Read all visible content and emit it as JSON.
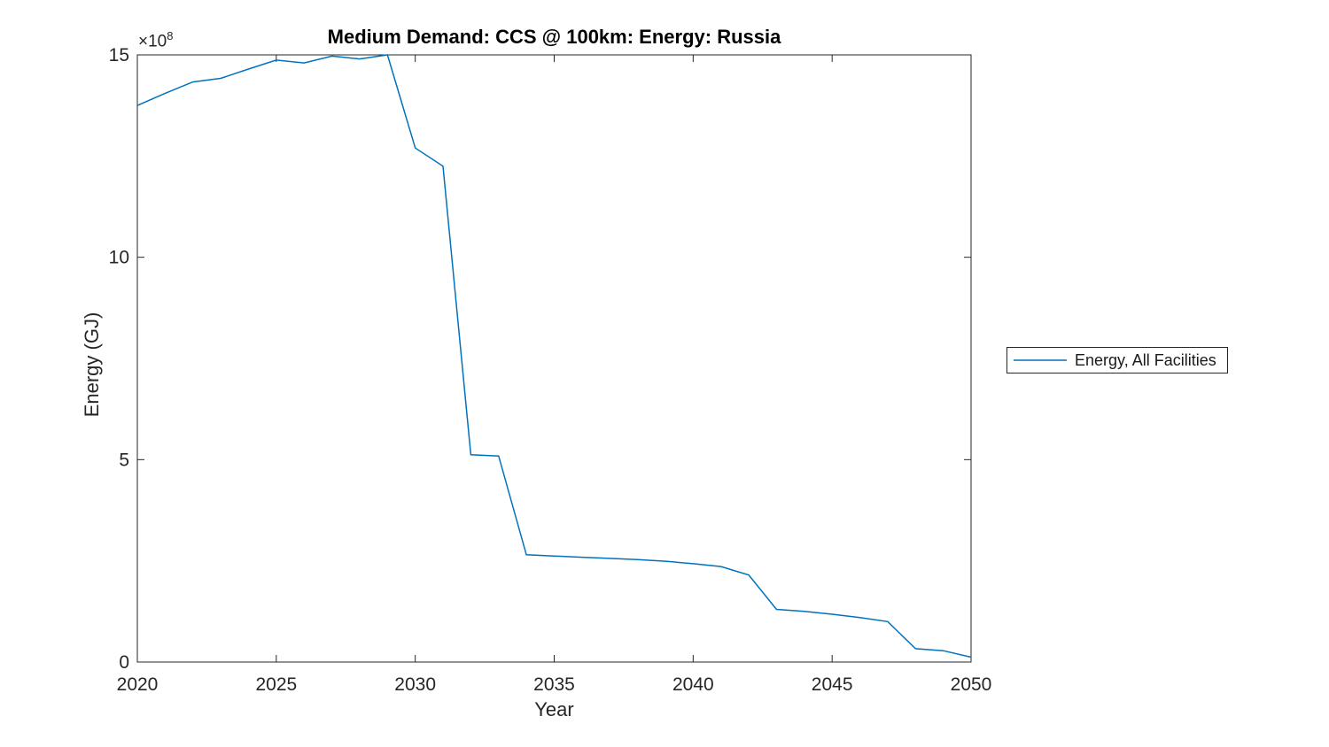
{
  "chart_data": {
    "type": "line",
    "title": "Medium Demand: CCS @ 100km: Energy: Russia",
    "xlabel": "Year",
    "ylabel": "Energy (GJ)",
    "y_offset_label": {
      "base": "×10",
      "exponent": "8"
    },
    "y_unit": "values are ×10^8 GJ",
    "xlim": [
      2020,
      2050
    ],
    "ylim": [
      0,
      15
    ],
    "xticks": [
      2020,
      2025,
      2030,
      2035,
      2040,
      2045,
      2050
    ],
    "yticks": [
      0,
      5,
      10,
      15
    ],
    "grid": false,
    "legend_position": "outside-right",
    "x": [
      2020,
      2021,
      2022,
      2023,
      2024,
      2025,
      2026,
      2027,
      2028,
      2029,
      2030,
      2031,
      2032,
      2033,
      2034,
      2035,
      2036,
      2037,
      2038,
      2039,
      2040,
      2041,
      2042,
      2043,
      2044,
      2045,
      2046,
      2047,
      2048,
      2049,
      2050
    ],
    "series": [
      {
        "name": "Energy, All Facilities",
        "color": "#0072BD",
        "values": [
          13.75,
          14.05,
          14.33,
          14.42,
          14.65,
          14.87,
          14.8,
          14.97,
          14.9,
          15.0,
          12.7,
          12.25,
          5.12,
          5.09,
          2.65,
          2.62,
          2.59,
          2.56,
          2.53,
          2.49,
          2.43,
          2.36,
          2.15,
          1.3,
          1.25,
          1.18,
          1.1,
          1.0,
          0.33,
          0.28,
          0.12
        ]
      }
    ]
  },
  "colors": {
    "line": "#0072BD",
    "axis": "#262626",
    "tick_text": "#262626",
    "title_text": "#000000",
    "background": "#ffffff"
  }
}
